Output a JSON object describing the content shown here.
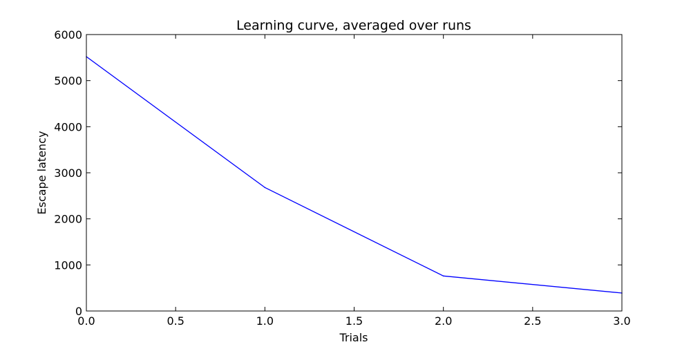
{
  "chart_data": {
    "type": "line",
    "title": "Learning curve, averaged over runs",
    "xlabel": "Trials",
    "ylabel": "Escape latency",
    "xlim": [
      0,
      3
    ],
    "ylim": [
      0,
      6000
    ],
    "xticks": [
      0.0,
      0.5,
      1.0,
      1.5,
      2.0,
      2.5,
      3.0
    ],
    "xtick_labels": [
      "0.0",
      "0.5",
      "1.0",
      "1.5",
      "2.0",
      "2.5",
      "3.0"
    ],
    "yticks": [
      0,
      1000,
      2000,
      3000,
      4000,
      5000,
      6000
    ],
    "ytick_labels": [
      "0",
      "1000",
      "2000",
      "3000",
      "4000",
      "5000",
      "6000"
    ],
    "grid": false,
    "series": [
      {
        "x": [
          0,
          1,
          2,
          3
        ],
        "values": [
          5520,
          2680,
          760,
          390
        ],
        "color": "#0000ff"
      }
    ]
  }
}
